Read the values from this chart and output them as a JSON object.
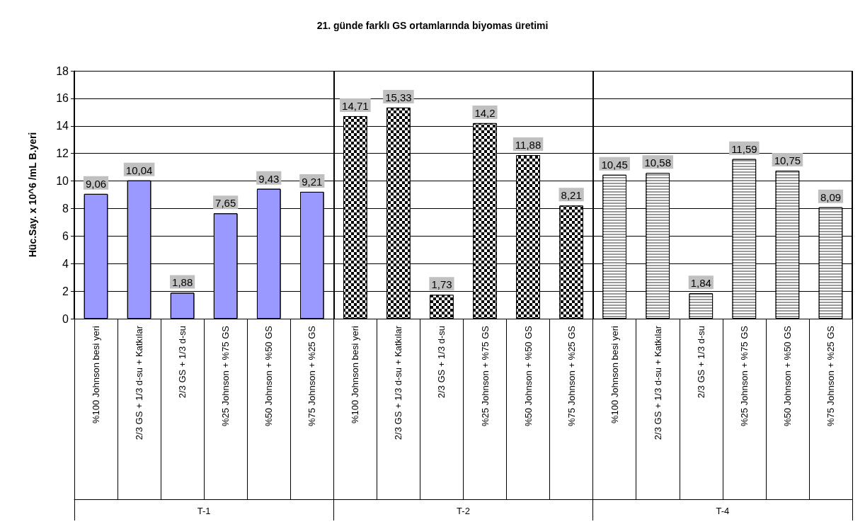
{
  "chart_data": {
    "type": "bar",
    "title": "21. günde farklı GS ortamlarında biyomas üretimi",
    "ylabel": "Hüc.Say. x 10^6 /mL B.yeri",
    "annotations": [
      "T-1",
      "T-2",
      "T-4"
    ],
    "categories": [
      "%100 Johnson besi yeri",
      "2/3 GS + 1/3 d-su + Katkılar",
      "2/3 GS + 1/3 d-su",
      "%25 Johnson + %75 GS",
      "%50 Johnson + %50 GS",
      "%75 Johnson + %25 GS",
      "%100 Johnson besi yeri",
      "2/3 GS + 1/3 d-su + Katkılar",
      "2/3 GS + 1/3 d-su",
      "%25 Johnson + %75 GS",
      "%50 Johnson + %50 GS",
      "%75 Johnson + %25 GS",
      "%100 Johnson besi yeri",
      "2/3 GS + 1/3 d-su + Katkılar",
      "2/3 GS + 1/3 d-su",
      "%25 Johnson + %75 GS",
      "%50 Johnson + %50 GS",
      "%75 Johnson + %25 GS"
    ],
    "series": [
      {
        "color": "#9999ff",
        "values": [
          9.06,
          10.04,
          1.88,
          7.65,
          9.43,
          9.21,
          null,
          null,
          null,
          null,
          null,
          null,
          null,
          null,
          null,
          null,
          null,
          null
        ],
        "value_labels": [
          "9,06",
          "10,04",
          "1,88",
          "7,65",
          "9,43",
          "9,21",
          null,
          null,
          null,
          null,
          null,
          null,
          null,
          null,
          null,
          null,
          null,
          null
        ]
      },
      {
        "color": "#000000",
        "values": [
          null,
          null,
          null,
          null,
          null,
          null,
          14.71,
          15.33,
          1.73,
          14.2,
          11.88,
          8.21,
          null,
          null,
          null,
          null,
          null,
          null
        ],
        "value_labels": [
          null,
          null,
          null,
          null,
          null,
          null,
          "14,71",
          "15,33",
          "1,73",
          "14,2",
          "11,88",
          "8,21",
          null,
          null,
          null,
          null,
          null,
          null
        ]
      },
      {
        "color": "#999999",
        "values": [
          null,
          null,
          null,
          null,
          null,
          null,
          null,
          null,
          null,
          null,
          null,
          null,
          10.45,
          10.58,
          1.84,
          11.59,
          10.75,
          8.09
        ],
        "value_labels": [
          null,
          null,
          null,
          null,
          null,
          null,
          null,
          null,
          null,
          null,
          null,
          null,
          "10,45",
          "10,58",
          "1,84",
          "11,59",
          "10,75",
          "8,09"
        ]
      }
    ],
    "ylim": [
      0,
      18
    ],
    "yticks": [
      0,
      2,
      4,
      6,
      8,
      10,
      12,
      14,
      16,
      18
    ],
    "grid": "y"
  }
}
